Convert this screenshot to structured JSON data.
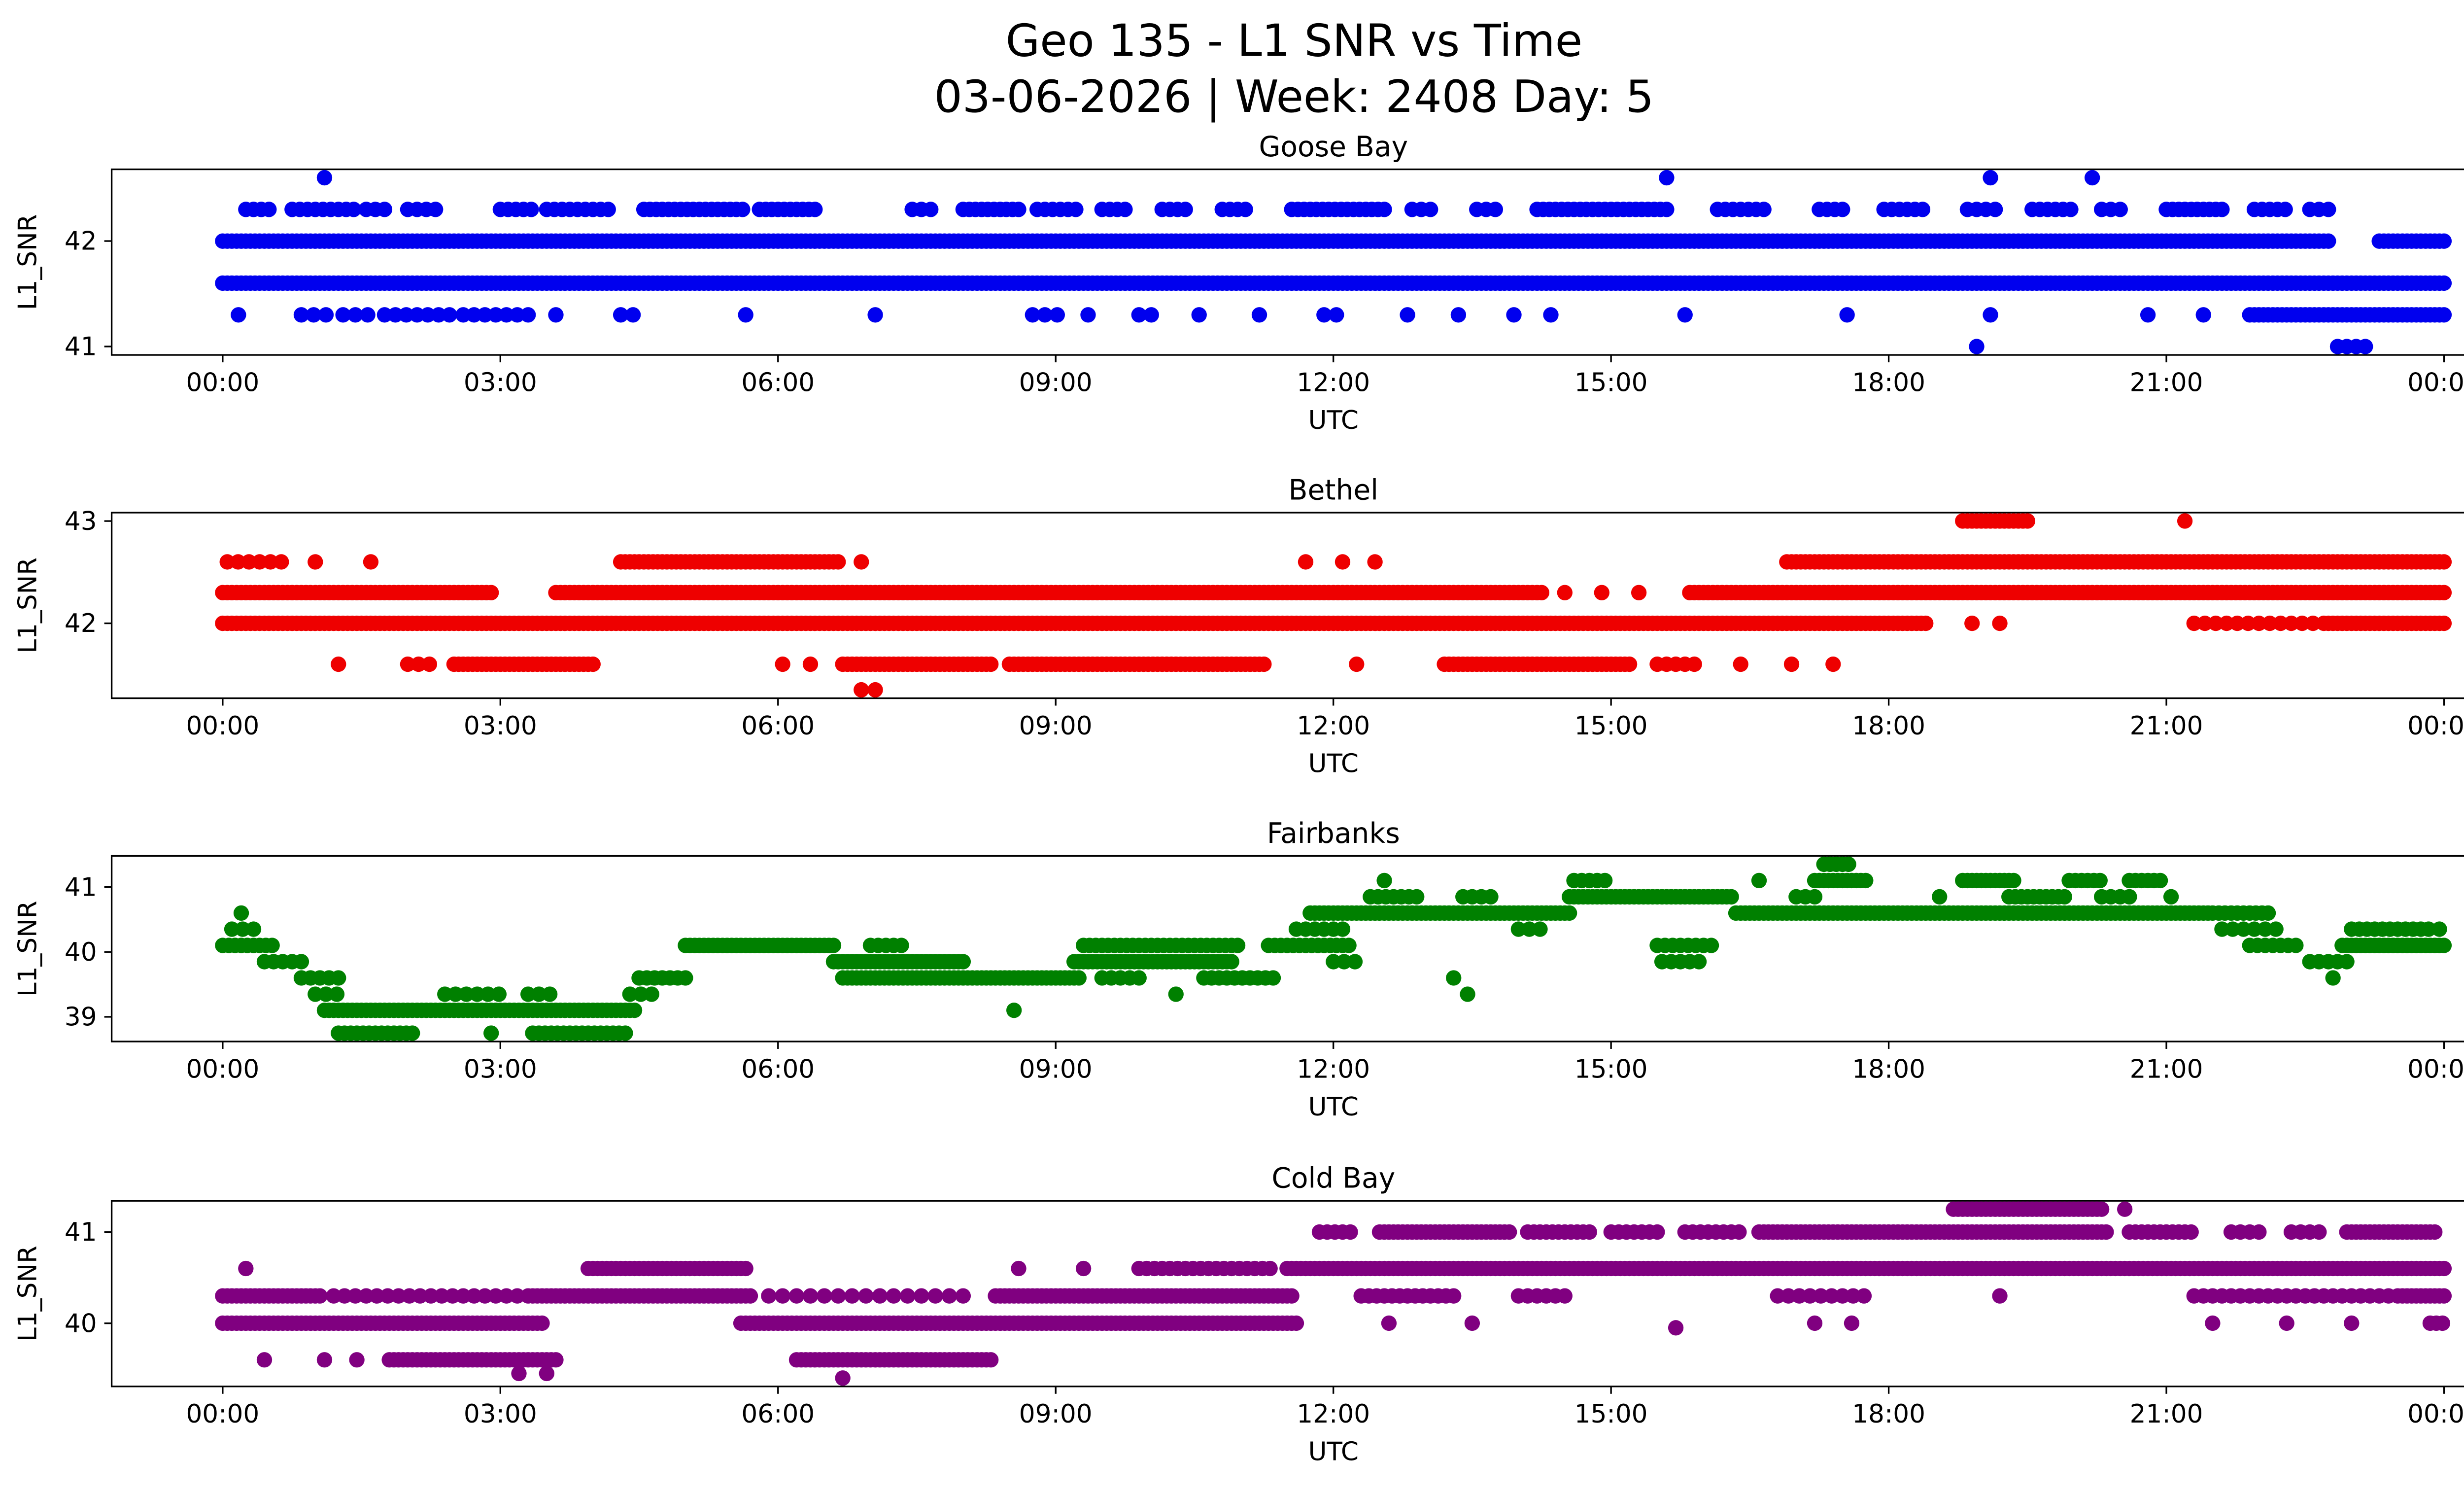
{
  "figure": {
    "title_line1": "Geo 135 - L1 SNR vs Time",
    "title_line2": "03-06-2026 | Week: 2408 Day: 5"
  },
  "labels": {
    "xlabel": "UTC",
    "ylabel": "L1_SNR"
  },
  "x_ticks": {
    "hours": [
      0,
      3,
      6,
      9,
      12,
      15,
      18,
      21,
      24
    ],
    "labels": [
      "00:00",
      "03:00",
      "06:00",
      "09:00",
      "12:00",
      "15:00",
      "18:00",
      "21:00",
      "00:00"
    ]
  },
  "chart_data": [
    {
      "type": "scatter",
      "title": "Goose Bay",
      "series_name": "Goose Bay L1_SNR",
      "color": "#0000ee",
      "xlabel": "UTC",
      "ylabel": "L1_SNR",
      "x_unit": "hours_utc",
      "xlim_hours": [
        0,
        24
      ],
      "ylim": [
        40.92,
        42.68
      ],
      "yticks": [
        41,
        42
      ],
      "segment_format": [
        "snr",
        "start_hour",
        "end_hour",
        "step_minutes"
      ],
      "segments": [
        [
          41.6,
          0,
          24,
          3
        ],
        [
          42.0,
          0,
          22.75,
          3
        ],
        [
          42.0,
          23.3,
          24,
          3
        ],
        [
          42.3,
          0.25,
          0.55,
          5
        ],
        [
          42.3,
          0.75,
          1.45,
          5
        ],
        [
          42.3,
          1.55,
          1.8,
          6
        ],
        [
          42.3,
          2.0,
          2.3,
          6
        ],
        [
          42.3,
          3.0,
          3.35,
          5
        ],
        [
          42.3,
          3.5,
          4.2,
          5
        ],
        [
          42.3,
          4.55,
          5.65,
          4
        ],
        [
          42.3,
          5.8,
          6.45,
          4
        ],
        [
          42.3,
          7.45,
          7.65,
          6
        ],
        [
          42.3,
          8.0,
          8.65,
          4
        ],
        [
          42.3,
          8.8,
          9.25,
          5
        ],
        [
          42.3,
          9.5,
          9.8,
          5
        ],
        [
          42.3,
          10.15,
          10.45,
          5
        ],
        [
          42.3,
          10.8,
          11.1,
          5
        ],
        [
          42.3,
          11.55,
          12.6,
          4
        ],
        [
          42.3,
          12.85,
          13.1,
          6
        ],
        [
          42.3,
          13.55,
          13.8,
          6
        ],
        [
          42.3,
          14.2,
          15.6,
          4
        ],
        [
          42.3,
          16.15,
          16.65,
          5
        ],
        [
          42.3,
          17.25,
          17.55,
          5
        ],
        [
          42.3,
          17.95,
          18.4,
          5
        ],
        [
          42.3,
          18.85,
          19.15,
          6
        ],
        [
          42.3,
          19.55,
          20.0,
          5
        ],
        [
          42.3,
          20.3,
          20.55,
          6
        ],
        [
          42.3,
          21.0,
          21.65,
          4
        ],
        [
          42.3,
          21.95,
          22.3,
          5
        ],
        [
          42.3,
          22.55,
          22.8,
          6
        ],
        [
          41.3,
          0.85,
          1.15,
          8
        ],
        [
          41.3,
          1.3,
          1.6,
          8
        ],
        [
          41.3,
          1.75,
          2.5,
          7
        ],
        [
          41.3,
          2.6,
          3.4,
          7
        ],
        [
          41.3,
          4.3,
          4.5,
          8
        ],
        [
          41.3,
          8.75,
          9.05,
          8
        ],
        [
          41.3,
          9.9,
          10.15,
          8
        ],
        [
          41.3,
          11.9,
          12.15,
          8
        ],
        [
          41.3,
          21.9,
          24,
          3
        ]
      ],
      "points": [
        [
          0.17,
          41.3
        ],
        [
          3.6,
          41.3
        ],
        [
          5.65,
          41.3
        ],
        [
          7.05,
          41.3
        ],
        [
          9.35,
          41.3
        ],
        [
          10.55,
          41.3
        ],
        [
          11.2,
          41.3
        ],
        [
          12.8,
          41.3
        ],
        [
          13.35,
          41.3
        ],
        [
          13.95,
          41.3
        ],
        [
          14.35,
          41.3
        ],
        [
          15.8,
          41.3
        ],
        [
          17.55,
          41.3
        ],
        [
          19.1,
          41.3
        ],
        [
          20.8,
          41.3
        ],
        [
          21.4,
          41.3
        ],
        [
          1.1,
          42.6
        ],
        [
          15.6,
          42.6
        ],
        [
          19.1,
          42.6
        ],
        [
          20.2,
          42.6
        ],
        [
          18.95,
          41.0
        ],
        [
          22.85,
          41.0
        ],
        [
          22.95,
          41.0
        ],
        [
          23.05,
          41.0
        ],
        [
          23.15,
          41.0
        ]
      ]
    },
    {
      "type": "scatter",
      "title": "Bethel",
      "series_name": "Bethel L1_SNR",
      "color": "#ee0000",
      "xlabel": "UTC",
      "ylabel": "L1_SNR",
      "x_unit": "hours_utc",
      "xlim_hours": [
        0,
        24
      ],
      "ylim": [
        41.2675,
        43.0825
      ],
      "yticks": [
        42,
        43
      ],
      "segment_format": [
        "snr",
        "start_hour",
        "end_hour",
        "step_minutes"
      ],
      "segments": [
        [
          42.3,
          0,
          2.9,
          3
        ],
        [
          42.3,
          3.6,
          14.25,
          3
        ],
        [
          42.3,
          15.85,
          24,
          3
        ],
        [
          42.0,
          0,
          18.4,
          3
        ],
        [
          42.0,
          21.3,
          22.6,
          7
        ],
        [
          42.0,
          22.7,
          24,
          3
        ],
        [
          42.6,
          0.05,
          0.65,
          7
        ],
        [
          42.6,
          4.3,
          6.65,
          3
        ],
        [
          42.6,
          16.9,
          24,
          3
        ],
        [
          41.6,
          2.0,
          2.25,
          7
        ],
        [
          41.6,
          2.5,
          4.0,
          3
        ],
        [
          41.6,
          6.7,
          8.3,
          3
        ],
        [
          41.6,
          8.5,
          11.25,
          3
        ],
        [
          41.6,
          13.2,
          15.2,
          3
        ],
        [
          41.6,
          15.5,
          15.95,
          6
        ],
        [
          43.0,
          18.8,
          19.5,
          3
        ]
      ],
      "points": [
        [
          1.0,
          42.6
        ],
        [
          1.6,
          42.6
        ],
        [
          6.9,
          42.6
        ],
        [
          11.7,
          42.6
        ],
        [
          12.1,
          42.6
        ],
        [
          12.45,
          42.6
        ],
        [
          14.5,
          42.3
        ],
        [
          14.9,
          42.3
        ],
        [
          15.3,
          42.3
        ],
        [
          18.9,
          42.0
        ],
        [
          19.2,
          42.0
        ],
        [
          1.25,
          41.6
        ],
        [
          6.05,
          41.6
        ],
        [
          6.35,
          41.6
        ],
        [
          12.25,
          41.6
        ],
        [
          16.4,
          41.6
        ],
        [
          16.95,
          41.6
        ],
        [
          17.4,
          41.6
        ],
        [
          21.2,
          43.0
        ],
        [
          6.9,
          41.35
        ],
        [
          7.05,
          41.35
        ]
      ]
    },
    {
      "type": "scatter",
      "title": "Fairbanks",
      "series_name": "Fairbanks L1_SNR",
      "color": "#008000",
      "xlabel": "UTC",
      "ylabel": "L1_SNR",
      "x_unit": "hours_utc",
      "xlim_hours": [
        0,
        24
      ],
      "ylim": [
        38.62,
        41.48
      ],
      "yticks": [
        39,
        40,
        41
      ],
      "segment_format": [
        "snr",
        "start_hour",
        "end_hour",
        "step_minutes"
      ],
      "segments": [
        [
          40.1,
          0,
          0.55,
          4
        ],
        [
          40.1,
          5.0,
          6.6,
          3
        ],
        [
          40.1,
          7.0,
          7.35,
          5
        ],
        [
          40.1,
          9.3,
          11.0,
          4
        ],
        [
          40.1,
          11.3,
          12.2,
          4
        ],
        [
          40.1,
          15.5,
          16.1,
          5
        ],
        [
          40.1,
          21.9,
          22.45,
          5
        ],
        [
          40.1,
          22.9,
          24,
          3
        ],
        [
          40.35,
          0.1,
          0.4,
          7
        ],
        [
          40.35,
          11.6,
          12.1,
          6
        ],
        [
          40.35,
          14.0,
          14.3,
          7
        ],
        [
          40.35,
          21.6,
          22.2,
          7
        ],
        [
          40.35,
          23.0,
          23.9,
          5
        ],
        [
          39.85,
          0.45,
          0.9,
          6
        ],
        [
          39.85,
          6.6,
          8.0,
          3
        ],
        [
          39.85,
          9.2,
          10.9,
          3
        ],
        [
          39.85,
          12.0,
          12.3,
          7
        ],
        [
          39.85,
          15.55,
          15.95,
          6
        ],
        [
          39.85,
          22.55,
          22.95,
          6
        ],
        [
          39.6,
          0.85,
          1.25,
          6
        ],
        [
          39.6,
          4.5,
          5.05,
          5
        ],
        [
          39.6,
          6.7,
          9.25,
          3
        ],
        [
          39.6,
          9.5,
          9.9,
          6
        ],
        [
          39.6,
          10.6,
          11.4,
          5
        ],
        [
          39.35,
          1.0,
          1.3,
          7
        ],
        [
          39.35,
          2.4,
          3.0,
          7
        ],
        [
          39.35,
          3.3,
          3.6,
          7
        ],
        [
          39.35,
          4.4,
          4.7,
          7
        ],
        [
          39.1,
          1.1,
          3.35,
          3
        ],
        [
          39.1,
          3.4,
          4.45,
          3
        ],
        [
          38.75,
          1.25,
          2.05,
          4
        ],
        [
          38.75,
          3.35,
          4.4,
          4
        ],
        [
          40.6,
          11.75,
          14.55,
          3
        ],
        [
          40.6,
          16.35,
          21.45,
          3
        ],
        [
          40.6,
          21.5,
          22.15,
          4
        ],
        [
          40.85,
          12.4,
          12.9,
          5
        ],
        [
          40.85,
          13.4,
          13.7,
          6
        ],
        [
          40.85,
          14.55,
          16.3,
          3
        ],
        [
          40.85,
          17.0,
          17.25,
          6
        ],
        [
          40.85,
          19.3,
          19.9,
          4
        ],
        [
          40.85,
          20.3,
          20.6,
          6
        ],
        [
          41.1,
          14.6,
          14.95,
          5
        ],
        [
          41.1,
          17.2,
          17.75,
          3
        ],
        [
          41.1,
          18.8,
          19.35,
          3
        ],
        [
          41.1,
          19.95,
          20.3,
          4
        ],
        [
          41.1,
          20.6,
          20.95,
          4
        ],
        [
          41.35,
          17.3,
          17.6,
          4
        ]
      ],
      "points": [
        [
          0.2,
          40.6
        ],
        [
          8.55,
          39.1
        ],
        [
          10.3,
          39.35
        ],
        [
          13.3,
          39.6
        ],
        [
          13.45,
          39.35
        ],
        [
          2.9,
          38.75
        ],
        [
          12.55,
          41.1
        ],
        [
          16.6,
          41.1
        ],
        [
          22.8,
          39.6
        ],
        [
          18.55,
          40.85
        ],
        [
          21.05,
          40.85
        ],
        [
          23.95,
          40.35
        ]
      ]
    },
    {
      "type": "scatter",
      "title": "Cold Bay",
      "series_name": "Cold Bay L1_SNR",
      "color": "#800080",
      "xlabel": "UTC",
      "ylabel": "L1_SNR",
      "x_unit": "hours_utc",
      "xlim_hours": [
        0,
        24
      ],
      "ylim": [
        39.3075,
        41.3425
      ],
      "yticks": [
        40,
        41
      ],
      "segment_format": [
        "snr",
        "start_hour",
        "end_hour",
        "step_minutes"
      ],
      "segments": [
        [
          40.0,
          0,
          3.45,
          3
        ],
        [
          40.0,
          5.6,
          11.6,
          3
        ],
        [
          40.0,
          23.85,
          24,
          4
        ],
        [
          40.3,
          0,
          1.05,
          3
        ],
        [
          40.3,
          1.2,
          3.3,
          7
        ],
        [
          40.3,
          3.35,
          5.7,
          3
        ],
        [
          40.3,
          5.9,
          8.0,
          9
        ],
        [
          40.3,
          8.35,
          11.55,
          3
        ],
        [
          40.3,
          12.3,
          13.35,
          5
        ],
        [
          40.3,
          14.0,
          14.5,
          6
        ],
        [
          40.3,
          16.8,
          17.8,
          7
        ],
        [
          40.3,
          21.3,
          23.45,
          6
        ],
        [
          40.3,
          23.5,
          24,
          3
        ],
        [
          39.6,
          1.8,
          3.6,
          3
        ],
        [
          39.6,
          6.2,
          8.3,
          3
        ],
        [
          40.6,
          3.95,
          5.65,
          3
        ],
        [
          40.6,
          9.9,
          11.35,
          5
        ],
        [
          40.6,
          11.5,
          24,
          3
        ],
        [
          41.0,
          11.85,
          12.2,
          5
        ],
        [
          41.0,
          12.5,
          13.9,
          3
        ],
        [
          41.0,
          14.1,
          14.8,
          4
        ],
        [
          41.0,
          15.0,
          15.55,
          5
        ],
        [
          41.0,
          15.8,
          16.45,
          5
        ],
        [
          41.0,
          16.6,
          18.35,
          3
        ],
        [
          41.0,
          18.4,
          20.35,
          3
        ],
        [
          41.0,
          20.6,
          21.3,
          4
        ],
        [
          41.0,
          21.7,
          22.05,
          6
        ],
        [
          41.0,
          22.35,
          22.7,
          6
        ],
        [
          41.0,
          22.95,
          23.9,
          3
        ],
        [
          41.25,
          18.7,
          20.3,
          3
        ]
      ],
      "points": [
        [
          0.25,
          40.6
        ],
        [
          8.6,
          40.6
        ],
        [
          9.3,
          40.6
        ],
        [
          0.45,
          39.6
        ],
        [
          1.1,
          39.6
        ],
        [
          1.45,
          39.6
        ],
        [
          3.2,
          39.45
        ],
        [
          3.5,
          39.45
        ],
        [
          6.7,
          39.4
        ],
        [
          12.6,
          40.0
        ],
        [
          13.5,
          40.0
        ],
        [
          17.2,
          40.0
        ],
        [
          17.6,
          40.0
        ],
        [
          21.5,
          40.0
        ],
        [
          22.3,
          40.0
        ],
        [
          23.0,
          40.0
        ],
        [
          15.7,
          39.95
        ],
        [
          19.2,
          40.3
        ],
        [
          20.55,
          41.25
        ]
      ]
    }
  ]
}
